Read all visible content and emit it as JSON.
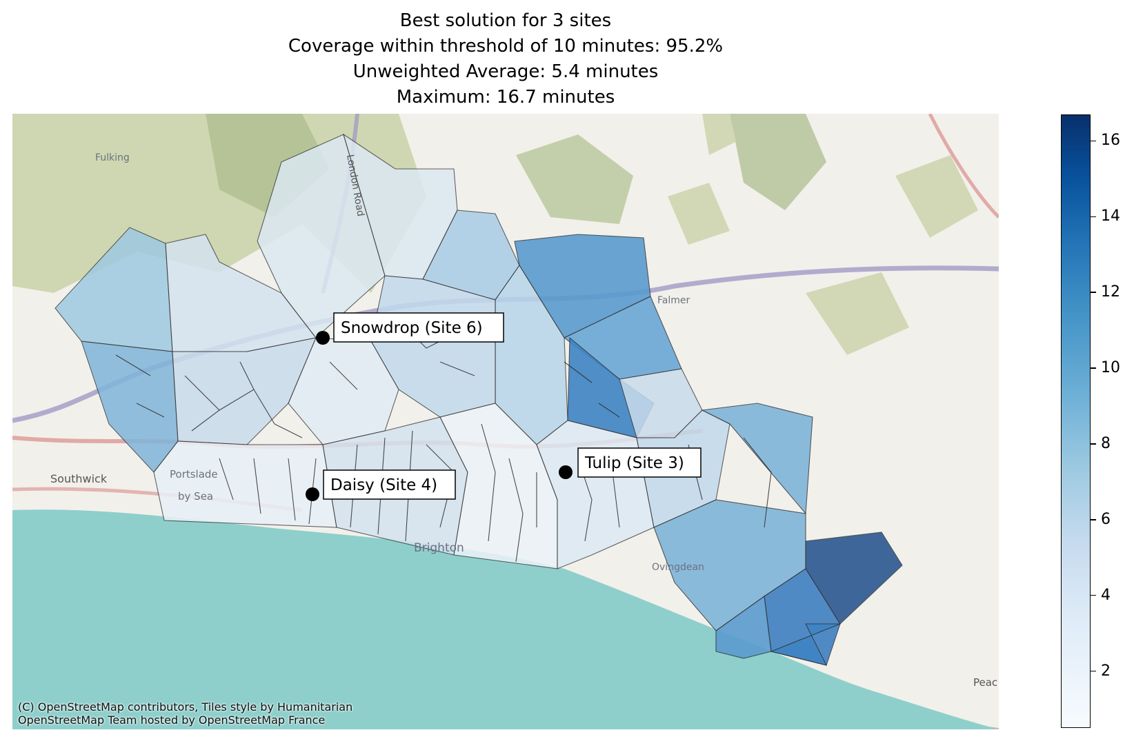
{
  "title": {
    "lines": [
      "Best solution for 3 sites",
      "Coverage within threshold of 10 minutes: 95.2%",
      "Unweighted Average: 5.4 minutes",
      "Maximum: 16.7 minutes"
    ]
  },
  "sites": [
    {
      "label": "Snowdrop (Site 6)"
    },
    {
      "label": "Daisy (Site 4)"
    },
    {
      "label": "Tulip (Site 3)"
    }
  ],
  "place_labels": [
    "Fulking",
    "Southwick",
    "Portslade",
    "by Sea",
    "Falmer",
    "Brighton",
    "Ovingdean",
    "Peac",
    "London Road"
  ],
  "attribution": {
    "line1": "(C) OpenStreetMap contributors, Tiles style by Humanitarian",
    "line2": "OpenStreetMap Team hosted by OpenStreetMap France"
  },
  "colorbar": {
    "min": 0.5,
    "max": 16.7,
    "ticks": [
      "2",
      "4",
      "6",
      "8",
      "10",
      "12",
      "14",
      "16"
    ],
    "colormap": "Blues"
  },
  "colors": {
    "sea": "#8ecfcc",
    "land": "#f2f0ea",
    "woodland": "#c5cfa4",
    "main_road": "#d98c8c",
    "bypass": "#9b95c4"
  }
}
